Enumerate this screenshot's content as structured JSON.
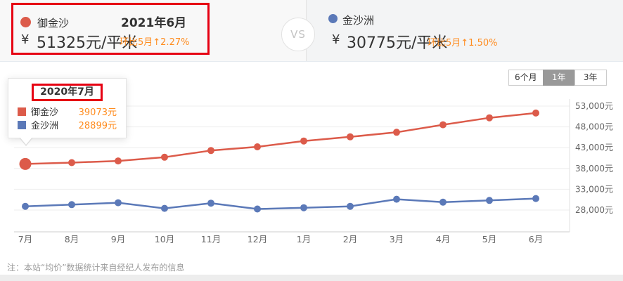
{
  "header": {
    "left": {
      "name": "御金沙",
      "date": "2021年6月",
      "currency": "¥",
      "price": "51325元/平米",
      "mom": "环比5月↑2.27%",
      "dot_color": "#dc5b4a"
    },
    "vs_label": "VS",
    "right": {
      "name": "金沙洲",
      "currency": "¥",
      "price": "30775元/平米",
      "mom": "环比5月↑1.50%",
      "dot_color": "#5b79b8"
    }
  },
  "controls": {
    "ranges": [
      {
        "label": "6个月",
        "active": false
      },
      {
        "label": "1年",
        "active": true
      },
      {
        "label": "3年",
        "active": false
      }
    ]
  },
  "tooltip": {
    "title": "2020年7月",
    "rows": [
      {
        "name": "御金沙",
        "value": "39073元",
        "color": "#dc5b4a"
      },
      {
        "name": "金沙洲",
        "value": "28899元",
        "color": "#5b79b8"
      }
    ]
  },
  "chart_data": {
    "type": "line",
    "categories": [
      "7月",
      "8月",
      "9月",
      "10月",
      "11月",
      "12月",
      "1月",
      "2月",
      "3月",
      "4月",
      "5月",
      "6月"
    ],
    "series": [
      {
        "name": "御金沙",
        "color": "#dc5b4a",
        "values": [
          39073,
          39400,
          39800,
          40700,
          42300,
          43200,
          44600,
          45600,
          46700,
          48500,
          50186,
          51325
        ]
      },
      {
        "name": "金沙洲",
        "color": "#5b79b8",
        "values": [
          28899,
          29300,
          29750,
          28400,
          29650,
          28250,
          28550,
          28900,
          30600,
          29900,
          30320,
          30775
        ]
      }
    ],
    "y_ticks": [
      {
        "value": 53000,
        "label": "53,000元"
      },
      {
        "value": 48000,
        "label": "48,000元"
      },
      {
        "value": 43000,
        "label": "43,000元"
      },
      {
        "value": 38000,
        "label": "38,000元"
      },
      {
        "value": 33000,
        "label": "33,000元"
      },
      {
        "value": 28000,
        "label": "28,000元"
      }
    ],
    "ylim": [
      28000,
      53000
    ],
    "grid": true,
    "legend_position": "tooltip",
    "emphasized_point": {
      "series": "御金沙",
      "index": 0
    },
    "title": "",
    "xlabel": "",
    "ylabel": ""
  },
  "footer": {
    "note": "注：本站“均价”数据统计来自经纪人发布的信息"
  },
  "colors": {
    "annotation": "#e60012",
    "mom_orange": "#ff8c1f",
    "series_red": "#dc5b4a",
    "series_blue": "#5b79b8"
  }
}
